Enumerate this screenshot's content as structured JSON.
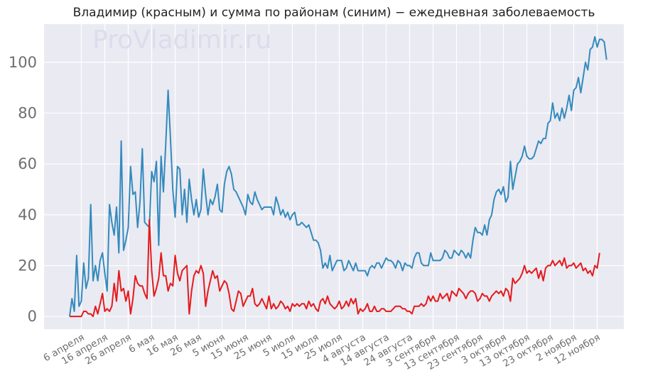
{
  "chart_data": {
    "type": "line",
    "title": "Владимир (красным) и сумма по районам (синим) − ежедневная заболеваемость",
    "watermark": "ProVladimir.ru",
    "xlabel": "",
    "ylabel": "",
    "ylim": [
      -5,
      115
    ],
    "grid": true,
    "y_ticks": [
      0,
      20,
      40,
      60,
      80,
      100
    ],
    "x_tick_labels": [
      "6 апреля",
      "16 апреля",
      "26 апреля",
      "6 мая",
      "16 мая",
      "26 мая",
      "5 июня",
      "15 июня",
      "25 июня",
      "5 июля",
      "15 июля",
      "25 июля",
      "4 августа",
      "14 августа",
      "24 августа",
      "3 сентября",
      "13 сентября",
      "23 сентября",
      "3 октября",
      "13 октября",
      "23 октября",
      "2 ноября",
      "12 ноября"
    ],
    "x_start": "2020-04-01",
    "series": [
      {
        "color": "#348abd",
        "values": [
          0,
          7,
          2,
          24,
          4,
          6,
          21,
          11,
          15,
          44,
          14,
          20,
          14,
          22,
          25,
          17,
          10,
          44,
          37,
          32,
          43,
          25,
          69,
          26,
          30,
          35,
          59,
          48,
          49,
          35,
          45,
          66,
          37,
          36,
          35,
          57,
          53,
          61,
          28,
          63,
          49,
          68,
          89,
          70,
          50,
          39,
          59,
          58,
          40,
          50,
          37,
          54,
          46,
          40,
          46,
          39,
          42,
          58,
          48,
          40,
          46,
          44,
          47,
          52,
          42,
          41,
          52,
          57,
          59,
          56,
          50,
          49,
          47,
          45,
          43,
          40,
          48,
          45,
          44,
          49,
          46,
          44,
          42,
          43,
          43,
          43,
          43,
          40,
          47,
          44,
          40,
          42,
          39,
          41,
          38,
          40,
          41,
          36,
          36,
          37,
          36,
          35,
          36,
          33,
          30,
          30,
          29,
          26,
          19,
          21,
          19,
          24,
          18,
          20,
          22,
          22,
          22,
          18,
          19,
          22,
          20,
          18,
          21,
          18,
          18,
          18,
          18,
          16,
          19,
          20,
          19,
          21,
          21,
          19,
          21,
          23,
          22,
          22,
          21,
          19,
          22,
          21,
          18,
          21,
          20,
          20,
          19,
          23,
          25,
          25,
          21,
          20,
          20,
          20,
          25,
          22,
          22,
          22,
          22,
          23,
          26,
          25,
          23,
          23,
          26,
          25,
          24,
          26,
          25,
          23,
          25,
          23,
          30,
          35,
          33,
          33,
          32,
          36,
          32,
          38,
          40,
          46,
          49,
          50,
          48,
          51,
          45,
          47,
          61,
          50,
          55,
          60,
          61,
          63,
          67,
          63,
          62,
          62,
          63,
          66,
          69,
          68,
          70,
          70,
          76,
          77,
          84,
          78,
          80,
          77,
          82,
          78,
          82,
          87,
          81,
          89,
          90,
          94,
          88,
          94,
          100,
          97,
          105,
          106,
          110,
          106,
          109,
          109,
          108,
          101
        ]
      },
      {
        "color": "#e41a1c",
        "values": [
          0,
          0,
          0,
          0,
          0,
          0,
          2,
          2,
          1,
          1,
          0,
          4,
          1,
          5,
          9,
          2,
          3,
          2,
          4,
          13,
          6,
          18,
          10,
          11,
          6,
          10,
          1,
          7,
          16,
          13,
          12,
          12,
          9,
          7,
          38,
          18,
          8,
          11,
          15,
          25,
          16,
          16,
          10,
          13,
          12,
          24,
          17,
          14,
          18,
          19,
          20,
          1,
          10,
          16,
          18,
          17,
          20,
          17,
          4,
          10,
          14,
          18,
          15,
          16,
          10,
          12,
          14,
          13,
          9,
          3,
          2,
          6,
          10,
          9,
          4,
          6,
          8,
          8,
          11,
          5,
          4,
          5,
          7,
          5,
          3,
          8,
          3,
          5,
          3,
          4,
          6,
          5,
          3,
          4,
          2,
          5,
          4,
          5,
          4,
          5,
          5,
          3,
          6,
          4,
          5,
          3,
          2,
          6,
          7,
          5,
          8,
          5,
          4,
          3,
          4,
          6,
          3,
          4,
          6,
          4,
          7,
          5,
          7,
          1,
          3,
          2,
          3,
          5,
          2,
          2,
          4,
          2,
          2,
          3,
          3,
          2,
          2,
          2,
          3,
          4,
          4,
          4,
          3,
          3,
          2,
          2,
          1,
          4,
          4,
          4,
          5,
          4,
          5,
          8,
          6,
          8,
          6,
          6,
          9,
          7,
          8,
          9,
          6,
          10,
          9,
          8,
          11,
          10,
          9,
          7,
          9,
          10,
          10,
          9,
          6,
          7,
          9,
          8,
          8,
          6,
          8,
          9,
          10,
          9,
          10,
          8,
          11,
          10,
          6,
          15,
          13,
          14,
          15,
          17,
          20,
          17,
          18,
          17,
          18,
          19,
          15,
          18,
          14,
          19,
          20,
          20,
          22,
          20,
          21,
          22,
          20,
          23,
          19,
          20,
          20,
          21,
          19,
          20,
          21,
          18,
          19,
          17,
          18,
          16,
          20,
          19,
          25
        ]
      }
    ]
  }
}
